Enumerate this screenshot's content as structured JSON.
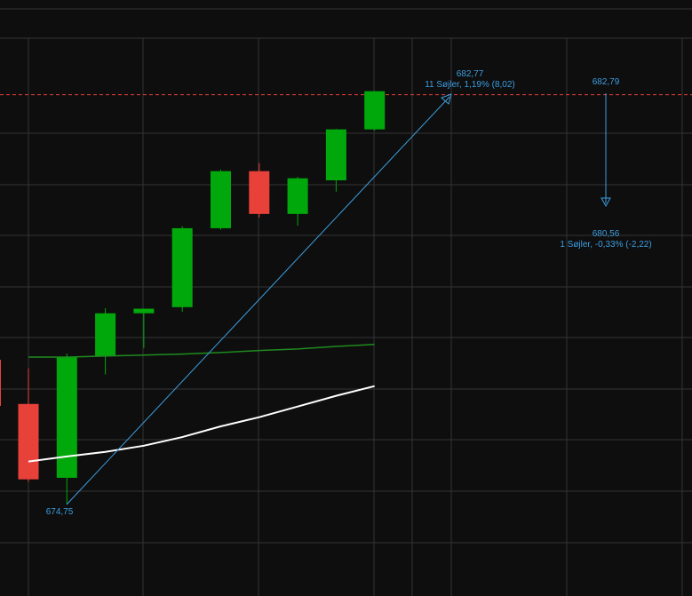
{
  "chart_data": {
    "type": "candlestick",
    "categories": [
      null,
      null,
      null,
      null,
      null,
      null,
      null,
      null,
      null,
      null
    ],
    "ylim": [
      672.95,
      684.65
    ],
    "up_color": "#00a80b",
    "down_color": "#e8413a",
    "open": [
      676.72,
      675.27,
      677.66,
      678.5,
      678.62,
      680.17,
      681.29,
      680.45,
      681.11,
      682.11
    ],
    "close": [
      675.24,
      677.64,
      678.5,
      678.59,
      680.17,
      681.29,
      680.45,
      681.15,
      682.11,
      682.86
    ],
    "high": [
      677.42,
      677.71,
      678.6,
      678.59,
      680.21,
      681.32,
      681.45,
      681.18,
      682.12,
      682.86
    ],
    "low": [
      675.19,
      674.75,
      677.3,
      677.82,
      678.53,
      680.14,
      680.38,
      680.22,
      680.89,
      682.09
    ],
    "series": [
      {
        "color": "#ffffff",
        "values": [
          675.59,
          675.69,
          675.78,
          675.9,
          676.07,
          676.28,
          676.46,
          676.67,
          676.88,
          677.07
        ]
      },
      {
        "color": "#1f8a1f",
        "values": [
          677.64,
          677.64,
          677.66,
          677.68,
          677.7,
          677.73,
          677.77,
          677.8,
          677.85,
          677.89
        ]
      }
    ],
    "price_line": {
      "value": 682.79,
      "color": "#e8413a"
    },
    "annotations": [
      {
        "text": "682,77"
      },
      {
        "text": "11 Søjler, 1,19% (8,02)"
      },
      {
        "text": "682,79"
      },
      {
        "text": "680,56"
      },
      {
        "text": "1 Søjler, -0,33% (-2,22)"
      },
      {
        "text": "674,75"
      }
    ]
  }
}
